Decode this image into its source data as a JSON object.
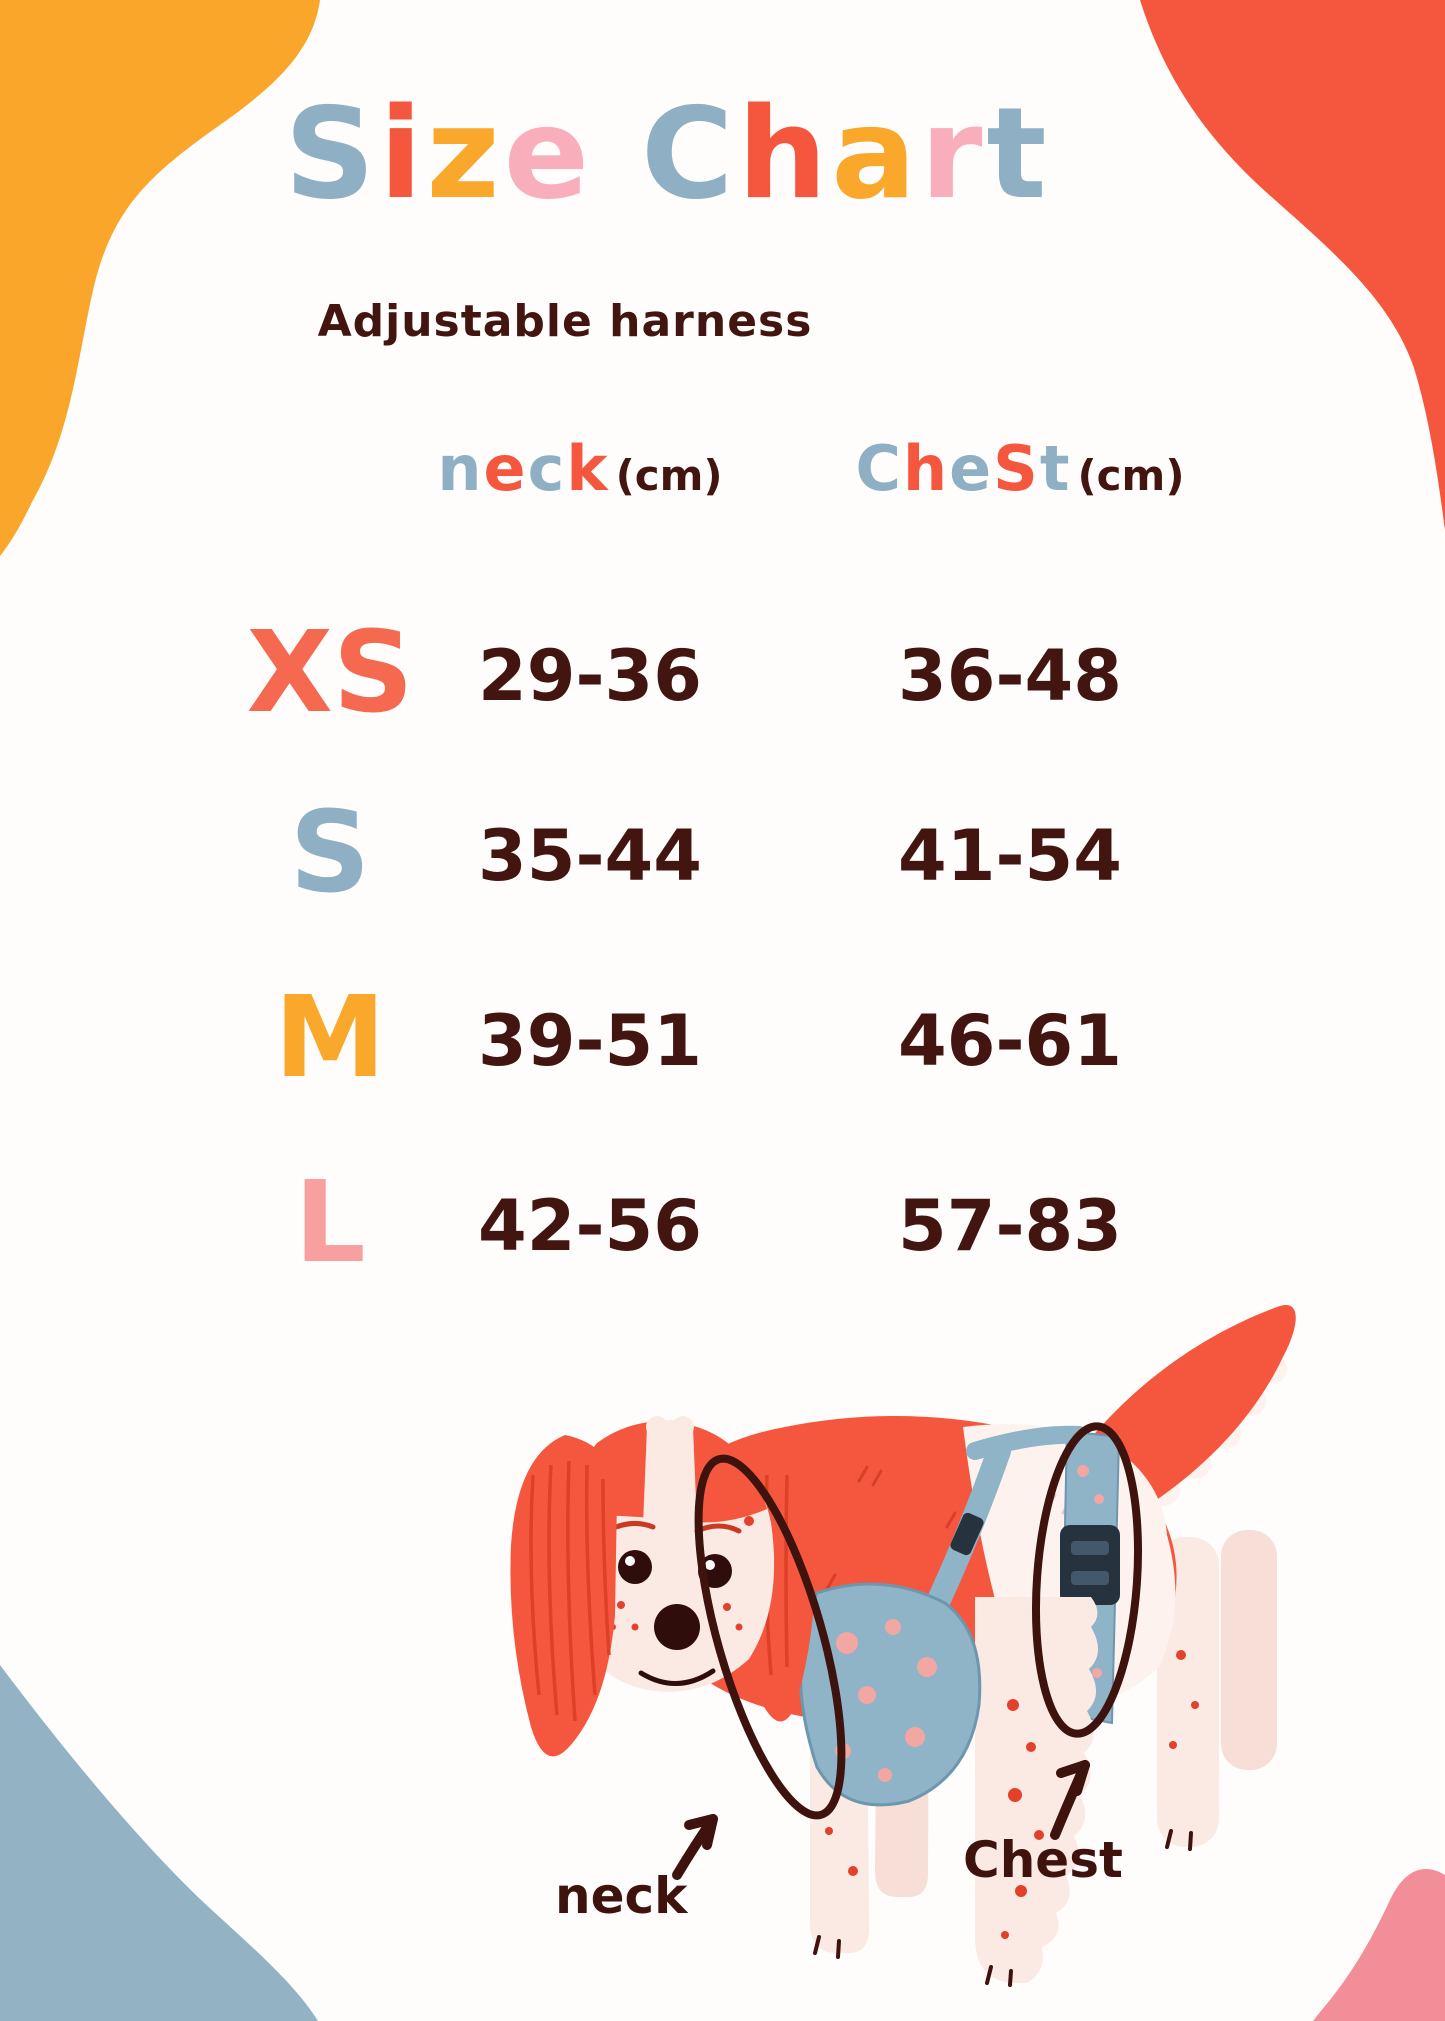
{
  "palette": {
    "blue": "#8FB0C4",
    "coral": "#F4573E",
    "yellow": "#F9A82B",
    "pink": "#F9AEBC",
    "dark_brown": "#431510",
    "blob_yellow": "#F9A62B",
    "blob_coral": "#F4573E",
    "blob_blue": "#93B2C4",
    "blob_pink": "#F28E97",
    "harness_blue": "#8FB3C7",
    "cream": "#FBE9E4",
    "spot_red": "#E2422B"
  },
  "title": {
    "text": "Size Chart",
    "letters": [
      {
        "ch": "S",
        "color": "#8FB0C4"
      },
      {
        "ch": "i",
        "color": "#F4573E"
      },
      {
        "ch": "z",
        "color": "#F9A82B"
      },
      {
        "ch": "e",
        "color": "#F9AEBC"
      },
      {
        "ch": " ",
        "color": "#431510"
      },
      {
        "ch": "C",
        "color": "#8FB0C4"
      },
      {
        "ch": "h",
        "color": "#F4573E"
      },
      {
        "ch": "a",
        "color": "#F9A82B"
      },
      {
        "ch": "r",
        "color": "#F9AEBC"
      },
      {
        "ch": "t",
        "color": "#8FB0C4"
      }
    ],
    "subtitle": "Adjustable harness"
  },
  "table": {
    "headers": [
      {
        "word": "neck",
        "letters": [
          {
            "ch": "n",
            "color": "#8FB0C4"
          },
          {
            "ch": "e",
            "color": "#F4573E"
          },
          {
            "ch": "c",
            "color": "#8FB0C4"
          },
          {
            "ch": "k",
            "color": "#F4573E"
          }
        ],
        "unit": "(cm)"
      },
      {
        "word": "Chest",
        "letters": [
          {
            "ch": "C",
            "color": "#8FB0C4"
          },
          {
            "ch": "h",
            "color": "#F4573E"
          },
          {
            "ch": "e",
            "color": "#8FB0C4"
          },
          {
            "ch": "S",
            "color": "#F4573E"
          },
          {
            "ch": "t",
            "color": "#8FB0C4"
          }
        ],
        "unit": "(cm)"
      }
    ],
    "rows": [
      {
        "size": "XS",
        "size_color": "#F4694F",
        "neck": "29-36",
        "chest": "36-48"
      },
      {
        "size": "S",
        "size_color": "#8FB0C4",
        "neck": "35-44",
        "chest": "41-54"
      },
      {
        "size": "M",
        "size_color": "#F9A82B",
        "neck": "39-51",
        "chest": "46-61"
      },
      {
        "size": "L",
        "size_color": "#F8A0A0",
        "neck": "42-56",
        "chest": "57-83"
      }
    ]
  },
  "diagram": {
    "neck_label": "neck",
    "chest_label": "Chest"
  }
}
